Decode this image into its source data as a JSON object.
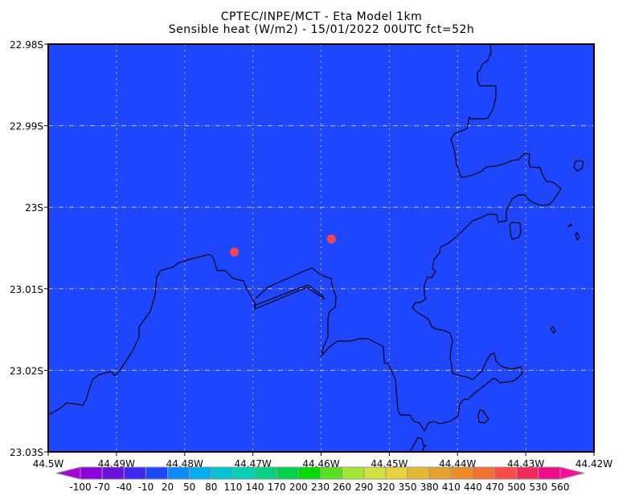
{
  "title": {
    "line1": "CPTEC/INPE/MCT -  Eta Model 1km",
    "line2": "Sensible heat (W/m2) - 15/01/2022 00UTC fct=52h"
  },
  "map": {
    "background_color": "#1e46ff",
    "coastline_color": "#000000",
    "grid_color": "#c8c8a0",
    "marker_color": "#ff4444",
    "markers": [
      {
        "lon": -44.4727,
        "lat": -23.0055
      },
      {
        "lon": -44.4585,
        "lat": -23.0039
      }
    ],
    "lat_labels": [
      "22.98S",
      "22.99S",
      "23S",
      "23.01S",
      "23.02S",
      "23.03S"
    ],
    "lon_labels": [
      "44.5W",
      "44.49W",
      "44.48W",
      "44.47W",
      "44.46W",
      "44.45W",
      "44.44W",
      "44.43W",
      "44.42W"
    ]
  },
  "colorbar": {
    "labels": [
      "-100",
      "-70",
      "-40",
      "-10",
      "20",
      "50",
      "80",
      "110",
      "140",
      "170",
      "200",
      "230",
      "260",
      "290",
      "320",
      "350",
      "380",
      "410",
      "440",
      "470",
      "500",
      "530",
      "560"
    ],
    "colors": [
      "#8c00dc",
      "#6a0fdc",
      "#3c28f0",
      "#1e46ff",
      "#0a8cff",
      "#00aff0",
      "#00c3d2",
      "#00d2b4",
      "#00d282",
      "#00d24b",
      "#00dc00",
      "#5ae11e",
      "#a5e632",
      "#d2e13c",
      "#e6d23c",
      "#e6b932",
      "#e6a02d",
      "#f08c28",
      "#f56e32",
      "#ff4b46",
      "#f5285a",
      "#f00a8c"
    ],
    "under_color": "#aa00dc",
    "over_color": "#ff0aa0"
  }
}
